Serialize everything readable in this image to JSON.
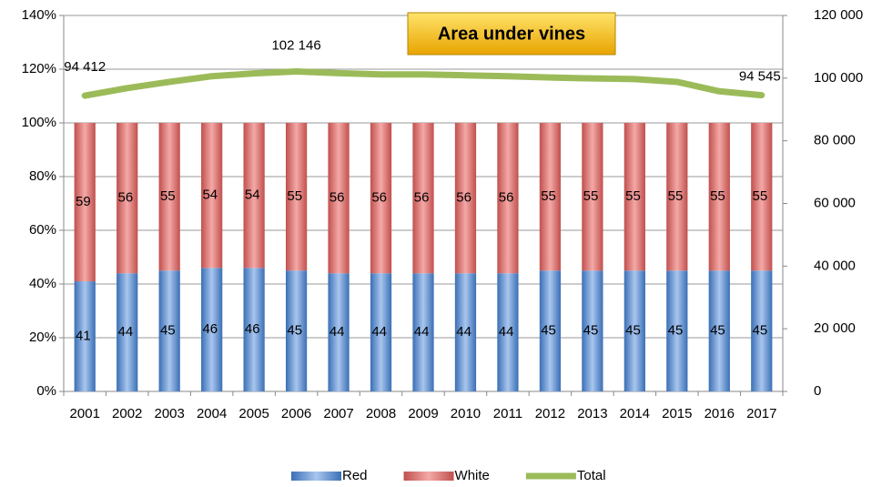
{
  "chart_data": {
    "type": "bar",
    "stacked": true,
    "title": "Area under vines",
    "categories": [
      "2001",
      "2002",
      "2003",
      "2004",
      "2005",
      "2006",
      "2007",
      "2008",
      "2009",
      "2010",
      "2011",
      "2012",
      "2013",
      "2014",
      "2015",
      "2016",
      "2017"
    ],
    "series": [
      {
        "name": "Red",
        "color": "#4f81bd",
        "values": [
          41,
          44,
          45,
          46,
          46,
          45,
          44,
          44,
          44,
          44,
          44,
          45,
          45,
          45,
          45,
          45,
          45
        ]
      },
      {
        "name": "White",
        "color": "#c0504d",
        "values": [
          59,
          56,
          55,
          54,
          54,
          55,
          56,
          56,
          56,
          56,
          56,
          55,
          55,
          55,
          55,
          55,
          55
        ]
      },
      {
        "name": "Total",
        "type": "line",
        "axis": "y2",
        "color": "#9bbb59",
        "values": [
          94412,
          96800,
          98800,
          100600,
          101500,
          102146,
          101600,
          101200,
          101200,
          100900,
          100600,
          100200,
          99900,
          99700,
          98800,
          95800,
          94545
        ],
        "value_labels": [
          "94 412",
          null,
          null,
          null,
          null,
          "102 146",
          null,
          null,
          null,
          null,
          null,
          null,
          null,
          null,
          null,
          null,
          "94 545"
        ]
      }
    ],
    "ylim": [
      0,
      140
    ],
    "yticks": [
      {
        "value": 0,
        "label": "0%"
      },
      {
        "value": 20,
        "label": "20%"
      },
      {
        "value": 40,
        "label": "40%"
      },
      {
        "value": 60,
        "label": "60%"
      },
      {
        "value": 80,
        "label": "80%"
      },
      {
        "value": 100,
        "label": "100%"
      },
      {
        "value": 120,
        "label": "120%"
      },
      {
        "value": 140,
        "label": "140%"
      }
    ],
    "y2lim": [
      0,
      120000
    ],
    "y2ticks": [
      0,
      {
        "value": 20000,
        "label": "20 000"
      },
      {
        "value": 40000,
        "label": "40 000"
      },
      {
        "value": 60000,
        "label": "60 000"
      },
      {
        "value": 80000,
        "label": "80 000"
      },
      {
        "value": 100000,
        "label": "100 000"
      },
      {
        "value": 120000,
        "label": "120 000"
      }
    ],
    "grid": true,
    "legend": "bottom"
  }
}
